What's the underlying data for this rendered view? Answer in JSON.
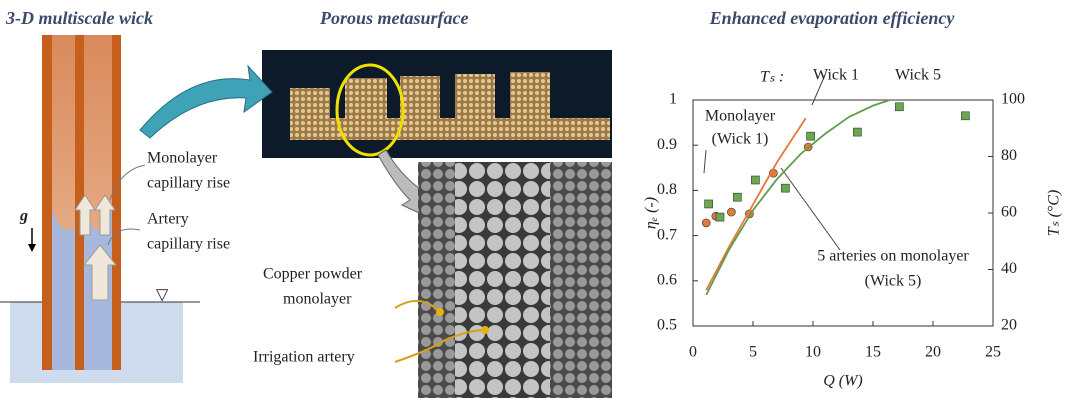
{
  "wick_panel": {
    "title": "3-D multiscale wick",
    "gravity": "g",
    "water_level": "▽",
    "labels": [
      [
        "Monolayer",
        "capillary rise"
      ],
      [
        "Artery",
        "capillary rise"
      ]
    ]
  },
  "metasurface_panel": {
    "title": "Porous metasurface",
    "labels": [
      [
        "Copper powder",
        "monolayer"
      ],
      [
        "Irrigation artery"
      ]
    ]
  },
  "chart_data": {
    "type": "scatter",
    "title": "Enhanced evaporation efficiency",
    "x_label": "Q (W)",
    "y_label": "ηₑ (-)",
    "y2_label": "Tₛ (°C)",
    "xlim": [
      0,
      25
    ],
    "xticks": [
      0,
      5,
      10,
      15,
      20,
      25
    ],
    "ylim": [
      0.5,
      1
    ],
    "yticks": [
      0.5,
      0.6,
      0.7,
      0.8,
      0.9,
      1
    ],
    "y2lim": [
      20,
      100
    ],
    "y2ticks": [
      20,
      40,
      60,
      80,
      100
    ],
    "annotations": [
      "Tₛ :",
      "Monolayer",
      "(Wick 1)",
      "5 arteries  on monolayer",
      "(Wick 5)"
    ],
    "series": [
      {
        "marker": "circle",
        "color": "#e07b39",
        "x": [
          1.1,
          1.9,
          3.2,
          4.7,
          6.7,
          9.6
        ],
        "values": [
          0.728,
          0.743,
          0.752,
          0.748,
          0.838,
          0.896
        ]
      },
      {
        "marker": "square",
        "color": "#6aa84f",
        "x": [
          1.3,
          2.25,
          3.7,
          5.2,
          7.7,
          9.8,
          13.7,
          17.2,
          22.7
        ],
        "values": [
          0.77,
          0.741,
          0.785,
          0.823,
          0.805,
          0.92,
          0.929,
          0.985,
          0.965
        ]
      },
      {
        "name": "Wick 1",
        "type": "line",
        "axis": "y2",
        "color": "#e8773a",
        "x": [
          1.1,
          3,
          5,
          7,
          9.4
        ],
        "values": [
          32.7,
          48,
          63,
          78,
          93.6
        ]
      },
      {
        "name": "Wick 5",
        "type": "line",
        "axis": "y2",
        "color": "#5e9e4a",
        "x": [
          1.1,
          3,
          5,
          7,
          9,
          11,
          13,
          15,
          16.4
        ],
        "values": [
          31,
          47,
          61,
          72,
          81,
          88,
          94,
          98,
          100
        ]
      }
    ]
  }
}
